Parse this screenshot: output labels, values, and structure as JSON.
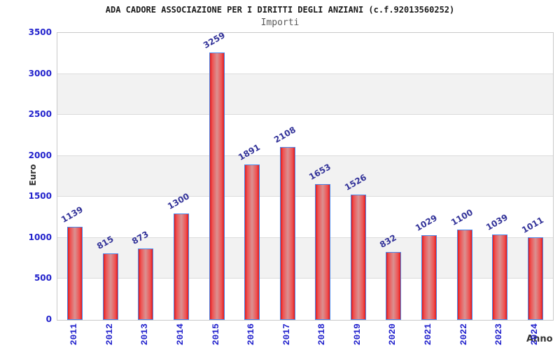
{
  "chart_data": {
    "type": "bar",
    "title": "ADA CADORE ASSOCIAZIONE PER I DIRITTI DEGLI ANZIANI (c.f.92013560252)",
    "subtitle": "Importi",
    "xlabel": "Anno",
    "ylabel": "Euro",
    "categories": [
      "2011",
      "2012",
      "2013",
      "2014",
      "2015",
      "2016",
      "2017",
      "2018",
      "2019",
      "2020",
      "2021",
      "2022",
      "2023",
      "2024"
    ],
    "values": [
      1139,
      815,
      873,
      1300,
      3259,
      1891,
      2108,
      1653,
      1526,
      832,
      1029,
      1100,
      1039,
      1011
    ],
    "ylim": [
      0,
      3500
    ],
    "ytick_step": 500,
    "grid": true,
    "legend": "none",
    "colors": {
      "bar_edge_red": "#e31a1a",
      "bar_mid_red": "#ef5050",
      "bar_center_pink": "#da9191",
      "bar_border_blue": "#4a86e8",
      "tick_label_blue": "#2222cc",
      "value_label_navy": "#333399",
      "band_gray": "#f2f2f2",
      "gridline_gray": "#dcdcdc",
      "plot_border_gray": "#c9c9c9",
      "title_black": "#1a1a1a",
      "subtitle_gray": "#595959",
      "axis_title_dark": "#333333"
    }
  }
}
